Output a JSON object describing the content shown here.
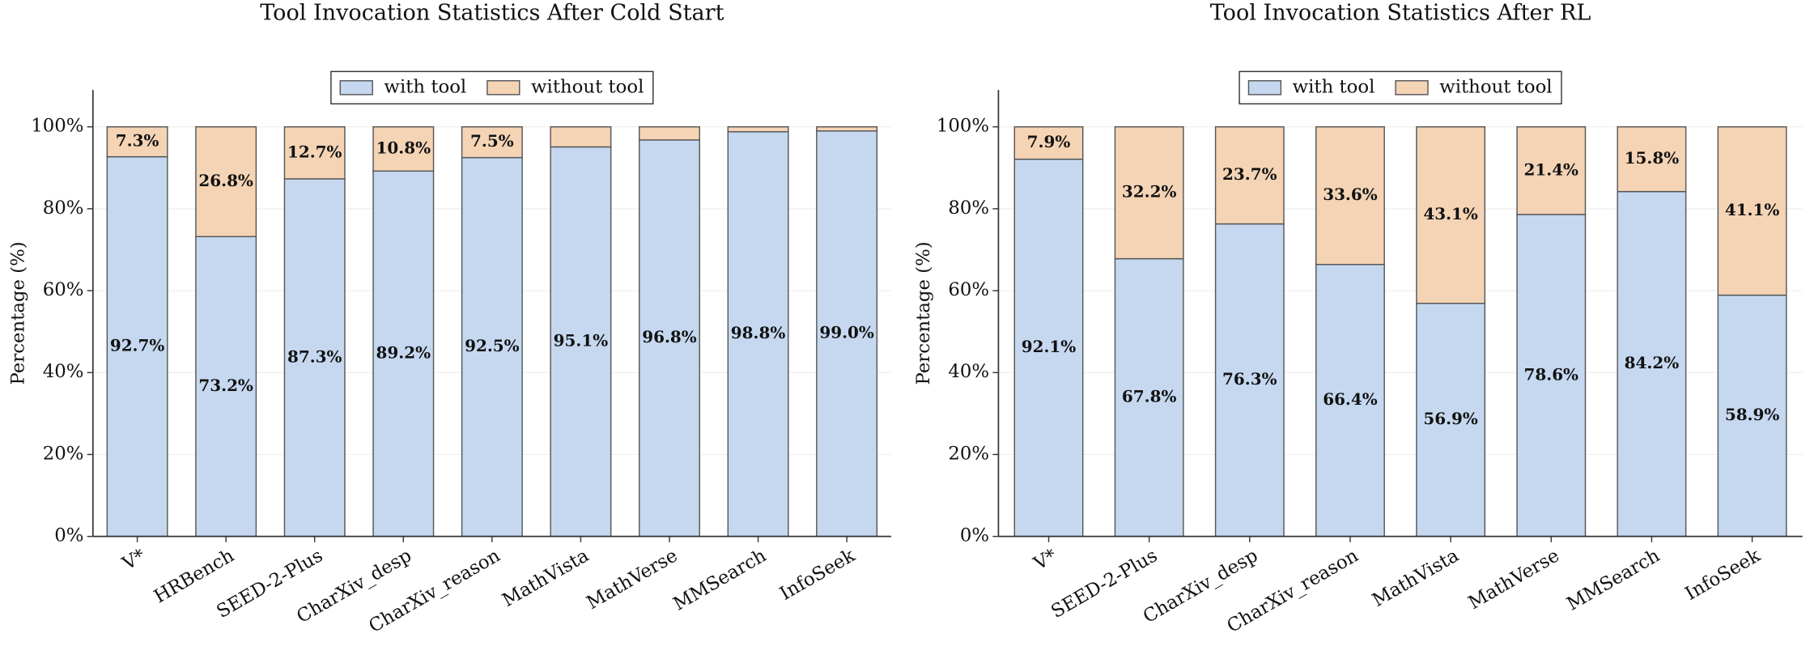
{
  "chart_data": [
    {
      "type": "stacked-bar",
      "title": "Tool Invocation Statistics After Cold Start",
      "y_label": "Percentage (%)",
      "categories": [
        "V*",
        "HRBench",
        "SEED-2-Plus",
        "CharXiv_desp",
        "CharXiv_reason",
        "MathVista",
        "MathVerse",
        "MMSearch",
        "InfoSeek"
      ],
      "series": [
        {
          "name": "with tool",
          "color": "#c5d8f0",
          "values": [
            92.7,
            73.2,
            87.3,
            89.2,
            92.5,
            95.1,
            96.8,
            98.8,
            99.0
          ],
          "value_labels": [
            "92.7%",
            "73.2%",
            "87.3%",
            "89.2%",
            "92.5%",
            "95.1%",
            "96.8%",
            "98.8%",
            "99.0%"
          ]
        },
        {
          "name": "without tool",
          "color": "#f4d4b5",
          "values": [
            7.3,
            26.8,
            12.7,
            10.8,
            7.5,
            4.9,
            3.2,
            1.2,
            1.0
          ],
          "value_labels": [
            "7.3%",
            "26.8%",
            "12.7%",
            "10.8%",
            "7.5%",
            null,
            null,
            null,
            null
          ]
        }
      ],
      "ylim": [
        0,
        109
      ],
      "yticks": [
        {
          "value": 0,
          "label": "0%"
        },
        {
          "value": 20,
          "label": "20%"
        },
        {
          "value": 40,
          "label": "40%"
        },
        {
          "value": 60,
          "label": "60%"
        },
        {
          "value": 80,
          "label": "80%"
        },
        {
          "value": 100,
          "label": "100%"
        }
      ],
      "grid": true,
      "legend": "top"
    },
    {
      "type": "stacked-bar",
      "title": "Tool Invocation Statistics After RL",
      "y_label": "Percentage (%)",
      "categories": [
        "V*",
        "SEED-2-Plus",
        "CharXiv_desp",
        "CharXiv_reason",
        "MathVista",
        "MathVerse",
        "MMSearch",
        "InfoSeek"
      ],
      "series": [
        {
          "name": "with tool",
          "color": "#c5d8f0",
          "values": [
            92.1,
            67.8,
            76.3,
            66.4,
            56.9,
            78.6,
            84.2,
            58.9
          ],
          "value_labels": [
            "92.1%",
            "67.8%",
            "76.3%",
            "66.4%",
            "56.9%",
            "78.6%",
            "84.2%",
            "58.9%"
          ]
        },
        {
          "name": "without tool",
          "color": "#f4d4b5",
          "values": [
            7.9,
            32.2,
            23.7,
            33.6,
            43.1,
            21.4,
            15.8,
            41.1
          ],
          "value_labels": [
            "7.9%",
            "32.2%",
            "23.7%",
            "33.6%",
            "43.1%",
            "21.4%",
            "15.8%",
            "41.1%"
          ]
        }
      ],
      "ylim": [
        0,
        109
      ],
      "yticks": [
        {
          "value": 0,
          "label": "0%"
        },
        {
          "value": 20,
          "label": "20%"
        },
        {
          "value": 40,
          "label": "40%"
        },
        {
          "value": 60,
          "label": "60%"
        },
        {
          "value": 80,
          "label": "80%"
        },
        {
          "value": 100,
          "label": "100%"
        }
      ],
      "grid": true,
      "legend": "top"
    }
  ]
}
